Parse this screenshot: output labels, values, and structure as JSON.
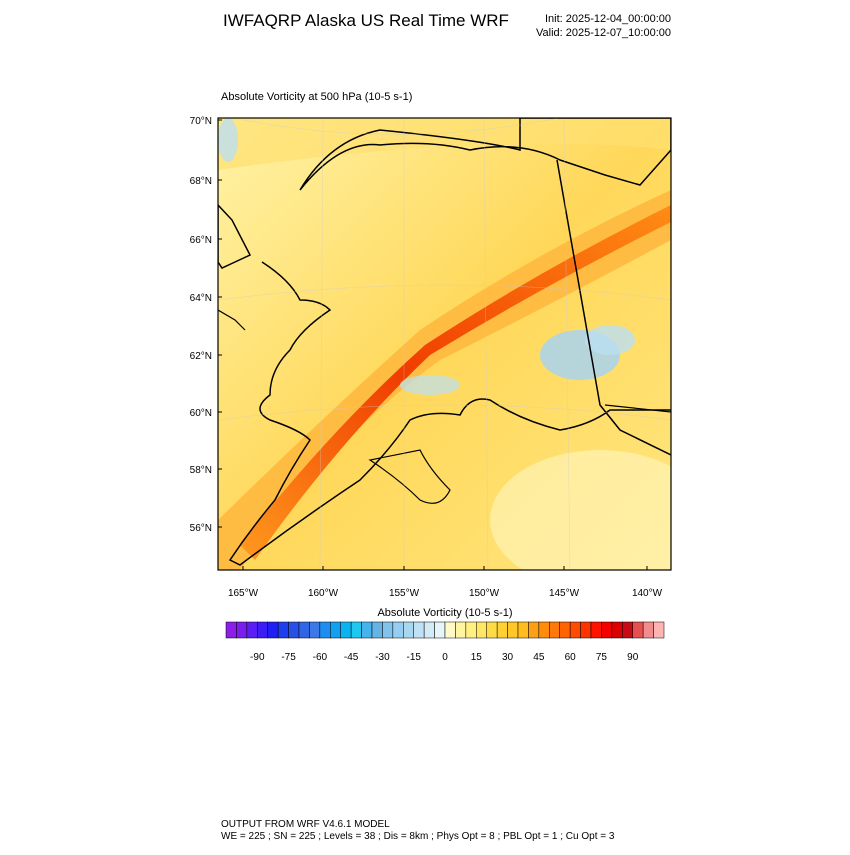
{
  "header": {
    "title": "IWFAQRP Alaska US Real Time WRF",
    "init": "Init: 2025-12-04_00:00:00",
    "valid": "Valid: 2025-12-07_10:00:00"
  },
  "map": {
    "title": "Absolute Vorticity at 500 hPa   (10-5 s-1)",
    "lat_labels": [
      "70°N",
      "68°N",
      "66°N",
      "64°N",
      "62°N",
      "60°N",
      "58°N",
      "56°N"
    ],
    "lon_labels": [
      "165°W",
      "160°W",
      "155°W",
      "150°W",
      "145°W",
      "140°W"
    ]
  },
  "colorbar": {
    "title": "Absolute Vorticity  (10-5 s-1)",
    "colors": [
      "#8c1ee8",
      "#7a1ef0",
      "#5a1ef5",
      "#3c1ef5",
      "#1e1ef5",
      "#1e3cf0",
      "#2850e6",
      "#3264e6",
      "#3c78e6",
      "#1e8cf0",
      "#14a0f0",
      "#0ab4f0",
      "#1ec8f0",
      "#46b4eb",
      "#64b4e6",
      "#82c3eb",
      "#96cdf0",
      "#aad7f0",
      "#bee1f5",
      "#d2ebf5",
      "#e6f5fa",
      "#fffac8",
      "#fff5a0",
      "#fff082",
      "#ffe664",
      "#ffdc46",
      "#ffd232",
      "#ffc828",
      "#ffbe1e",
      "#ffa014",
      "#ff8c0a",
      "#ff780a",
      "#ff6400",
      "#ff4b00",
      "#ff3200",
      "#ff1400",
      "#f50000",
      "#dc0000",
      "#c80a14",
      "#e65050",
      "#f08c8c",
      "#ffb4b4"
    ],
    "labels": [
      -90,
      -75,
      -60,
      -45,
      -30,
      -15,
      0,
      15,
      30,
      45,
      60,
      75,
      90
    ]
  },
  "footer": {
    "line1": "OUTPUT FROM WRF V4.6.1 MODEL",
    "line2": "WE = 225 ; SN = 225 ; Levels = 38 ; Dis = 8km ; Phys Opt = 8 ; PBL Opt = 1 ; Cu Opt = 3"
  }
}
